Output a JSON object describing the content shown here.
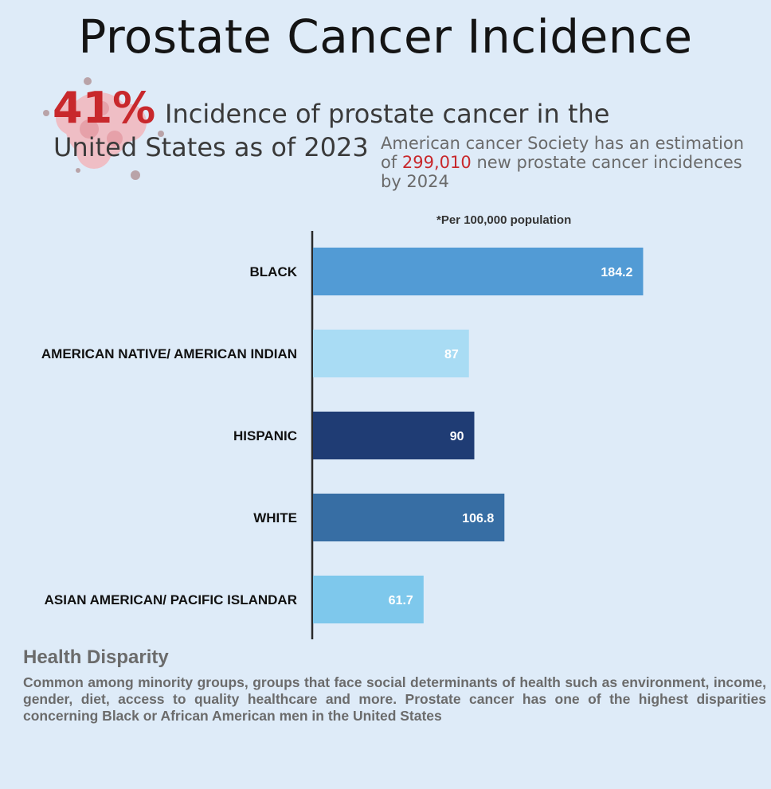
{
  "title": "Prostate Cancer Incidence",
  "headline": {
    "percent": "41%",
    "line1": "Incidence of prostate cancer in the",
    "line2": "United States as of 2023"
  },
  "acs_note": {
    "before": "American cancer Society has an estimation of ",
    "highlight": "299,010",
    "after": " new prostate cancer incidences by 2024"
  },
  "colors": {
    "accent_red": "#c8282c",
    "background": "#deebf8"
  },
  "chart_data": {
    "type": "bar",
    "orientation": "horizontal",
    "note": "*Per 100,000 population",
    "categories": [
      "BLACK",
      "AMERICAN NATIVE/ AMERICAN INDIAN",
      "HISPANIC",
      "WHITE",
      "ASIAN AMERICAN/ PACIFIC ISLANDAR"
    ],
    "values": [
      184.2,
      87,
      90,
      106.8,
      61.7
    ],
    "value_labels": [
      "184.2",
      "87",
      "90",
      "106.8",
      "61.7"
    ],
    "bar_colors": [
      "#529bd5",
      "#a9dcf4",
      "#1f3c74",
      "#376ea4",
      "#7ec8ec"
    ],
    "xlim": [
      0,
      200
    ],
    "grid": false,
    "legend": "none"
  },
  "health_disparity": {
    "title": "Health Disparity",
    "body": "Common among minority groups, groups that face social determinants of health such as environment, income, gender, diet, access to quality healthcare and more. Prostate cancer has one of the highest disparities concerning Black or African American men in the United States"
  }
}
